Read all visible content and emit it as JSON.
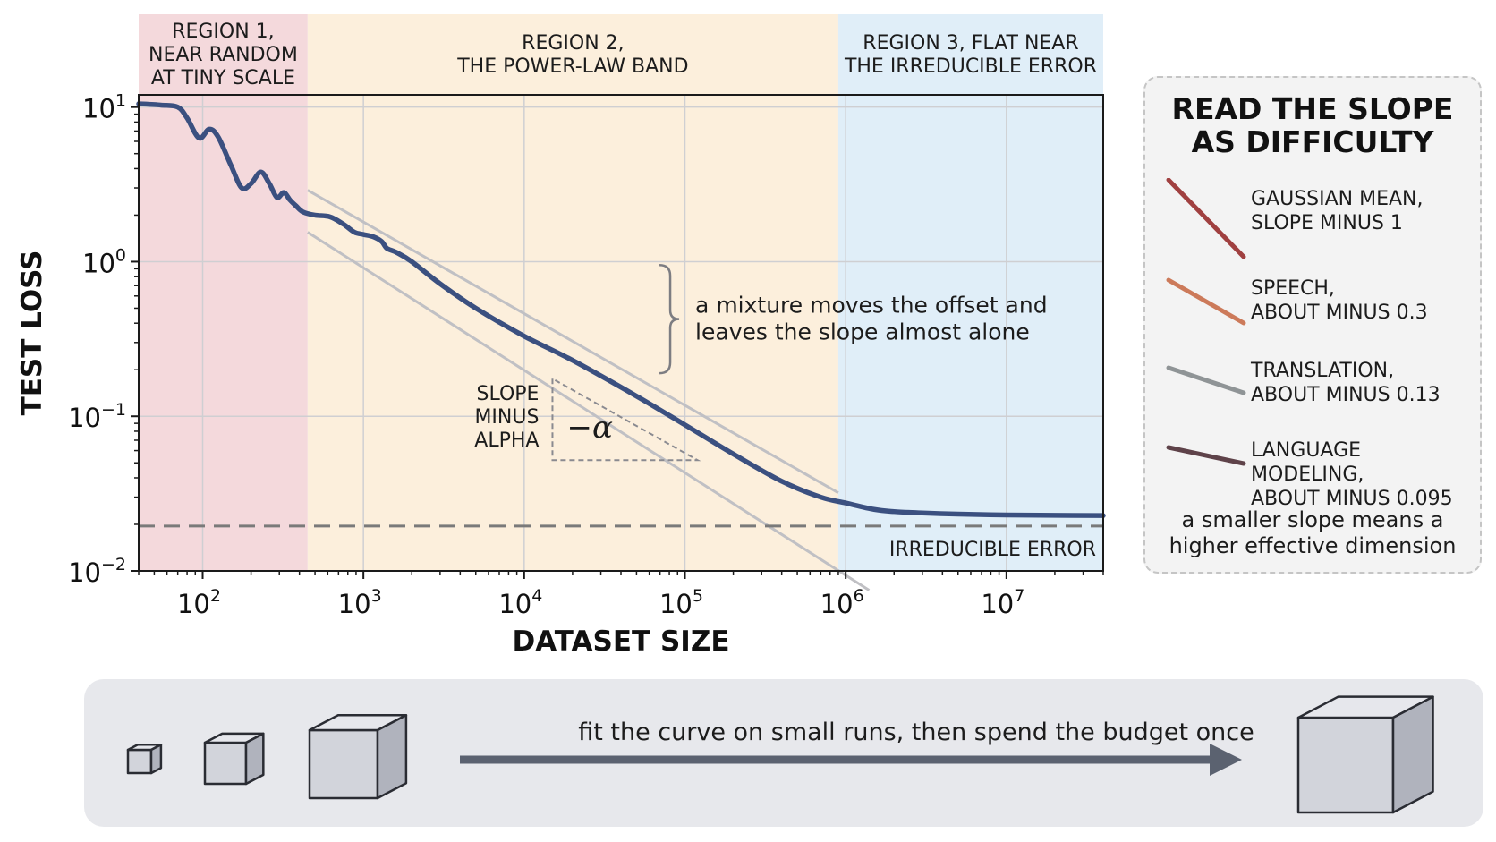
{
  "chart_data": {
    "type": "line",
    "title": "",
    "xlabel": "DATASET SIZE",
    "ylabel": "TEST LOSS",
    "x_scale": "log",
    "y_scale": "log",
    "xlim": [
      40,
      40000000
    ],
    "ylim": [
      0.01,
      12
    ],
    "grid": true,
    "x_ticks": [
      {
        "value": 100,
        "base": "10",
        "exp": "2"
      },
      {
        "value": 1000,
        "base": "10",
        "exp": "3"
      },
      {
        "value": 10000,
        "base": "10",
        "exp": "4"
      },
      {
        "value": 100000,
        "base": "10",
        "exp": "5"
      },
      {
        "value": 1000000,
        "base": "10",
        "exp": "6"
      },
      {
        "value": 10000000,
        "base": "10",
        "exp": "7"
      }
    ],
    "y_ticks": [
      {
        "value": 0.01,
        "base": "10",
        "exp": "−2"
      },
      {
        "value": 0.1,
        "base": "10",
        "exp": "−1"
      },
      {
        "value": 1,
        "base": "10",
        "exp": "0"
      },
      {
        "value": 10,
        "base": "10",
        "exp": "1"
      }
    ],
    "regions": [
      {
        "x_range": [
          40,
          450
        ],
        "color": "#f4d9dc",
        "lines": [
          "REGION 1,",
          "NEAR RANDOM",
          "AT TINY SCALE"
        ]
      },
      {
        "x_range": [
          450,
          900000
        ],
        "color": "#fcefdc",
        "lines": [
          "REGION 2,",
          "THE POWER-LAW BAND"
        ]
      },
      {
        "x_range": [
          900000,
          40000000
        ],
        "color": "#e0eef8",
        "lines": [
          "REGION 3, FLAT NEAR",
          "THE IRREDUCIBLE ERROR"
        ]
      }
    ],
    "series": [
      {
        "color": "#3b5080",
        "x": [
          40,
          55,
          70,
          80,
          95,
          110,
          125,
          150,
          175,
          200,
          230,
          260,
          290,
          320,
          350,
          380,
          420,
          500,
          620,
          750,
          880,
          1000,
          1150,
          1300,
          1400,
          1600,
          2000,
          3000,
          5000,
          10000,
          20000,
          50000,
          100000,
          200000,
          400000,
          700000,
          1000000,
          1500000,
          2000000,
          3000000,
          5000000,
          10000000,
          20000000,
          40000000
        ],
        "y": [
          10.5,
          10.3,
          10.0,
          8.5,
          6.3,
          7.2,
          6.4,
          4.2,
          3.0,
          3.2,
          3.8,
          3.2,
          2.6,
          2.8,
          2.5,
          2.3,
          2.1,
          2.0,
          1.95,
          1.75,
          1.55,
          1.5,
          1.45,
          1.35,
          1.22,
          1.15,
          1.0,
          0.72,
          0.5,
          0.33,
          0.23,
          0.135,
          0.088,
          0.057,
          0.038,
          0.03,
          0.0275,
          0.025,
          0.0242,
          0.0237,
          0.0233,
          0.023,
          0.0229,
          0.0228
        ]
      }
    ],
    "offset_lines": {
      "color": "#c0c0c4",
      "lines": [
        {
          "x": [
            450,
            900000
          ],
          "y": [
            2.9,
            0.032
          ]
        },
        {
          "x": [
            450,
            1400000
          ],
          "y": [
            1.55,
            0.0075
          ]
        }
      ]
    },
    "reference_lines": [
      {
        "y": 0.0195,
        "label": "IRREDUCIBLE ERROR",
        "style": "dashed",
        "color": "#7a7a7a"
      }
    ],
    "annotations": {
      "brace": {
        "x": 75000,
        "y_range": [
          0.19,
          0.95
        ],
        "lines": [
          "a mixture moves the offset and",
          "leaves the slope almost alone"
        ]
      },
      "slope_triangle": {
        "x_range": [
          15000,
          120000
        ],
        "y_range": [
          0.052,
          0.175
        ],
        "symbol": "−α",
        "lines": [
          "SLOPE",
          "MINUS",
          "ALPHA"
        ]
      }
    }
  },
  "legend": {
    "title_lines": [
      "READ THE SLOPE",
      "AS DIFFICULTY"
    ],
    "entries": [
      {
        "lines": [
          "GAUSSIAN MEAN,",
          "SLOPE MINUS 1"
        ],
        "color": "#a04040",
        "slope": 1
      },
      {
        "lines": [
          "SPEECH,",
          "ABOUT MINUS 0.3"
        ],
        "color": "#cc7a5a",
        "slope": 0.3
      },
      {
        "lines": [
          "TRANSLATION,",
          "ABOUT MINUS 0.13"
        ],
        "color": "#8f9496",
        "slope": 0.13
      },
      {
        "lines": [
          "LANGUAGE MODELING,",
          "ABOUT MINUS 0.095"
        ],
        "color": "#5e4249",
        "slope": 0.095
      }
    ],
    "note_lines": [
      "a smaller slope means a",
      "higher effective dimension"
    ]
  },
  "bottom": {
    "caption": "fit the curve on small runs, then spend the budget once"
  }
}
